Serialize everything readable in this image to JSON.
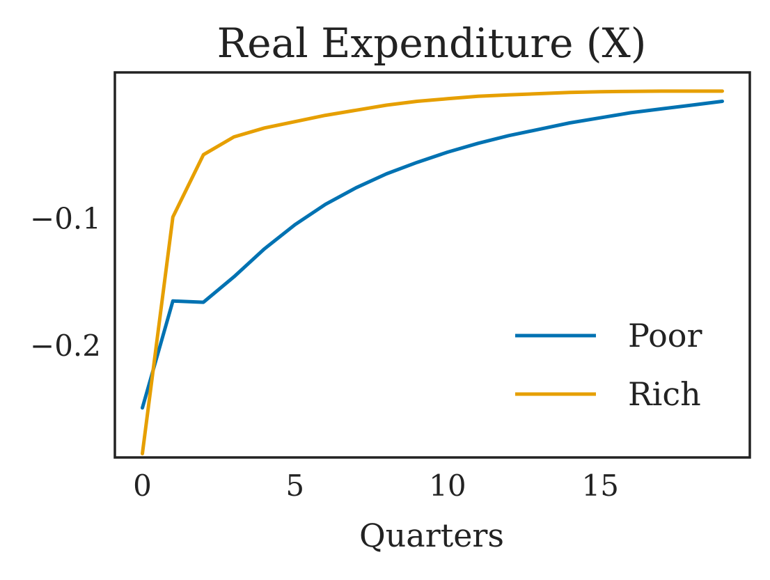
{
  "chart_data": {
    "type": "line",
    "title": "Real Expenditure (X)",
    "xlabel": "Quarters",
    "ylabel": "",
    "x": [
      0,
      1,
      2,
      3,
      4,
      5,
      6,
      7,
      8,
      9,
      10,
      11,
      12,
      13,
      14,
      15,
      16,
      17,
      18,
      19
    ],
    "xlim": [
      -0.9,
      19.9
    ],
    "ylim": [
      -0.288,
      0.0147
    ],
    "xticks": [
      0,
      5,
      10,
      15
    ],
    "yticks": [
      -0.1,
      -0.2
    ],
    "ytick_labels": [
      "−0.1",
      "−0.2"
    ],
    "grid": false,
    "legend_position": "lower-right",
    "series": [
      {
        "name": "Poor",
        "color": "#0072b2",
        "values": [
          -0.249,
          -0.165,
          -0.166,
          -0.146,
          -0.124,
          -0.105,
          -0.089,
          -0.076,
          -0.065,
          -0.056,
          -0.048,
          -0.041,
          -0.035,
          -0.03,
          -0.025,
          -0.021,
          -0.017,
          -0.014,
          -0.011,
          -0.008
        ]
      },
      {
        "name": "Rich",
        "color": "#e69f00",
        "values": [
          -0.285,
          -0.099,
          -0.05,
          -0.036,
          -0.029,
          -0.024,
          -0.019,
          -0.015,
          -0.011,
          -0.008,
          -0.006,
          -0.004,
          -0.003,
          -0.002,
          -0.001,
          -0.0005,
          -0.0002,
          0.0,
          0.0,
          0.0
        ]
      }
    ]
  }
}
